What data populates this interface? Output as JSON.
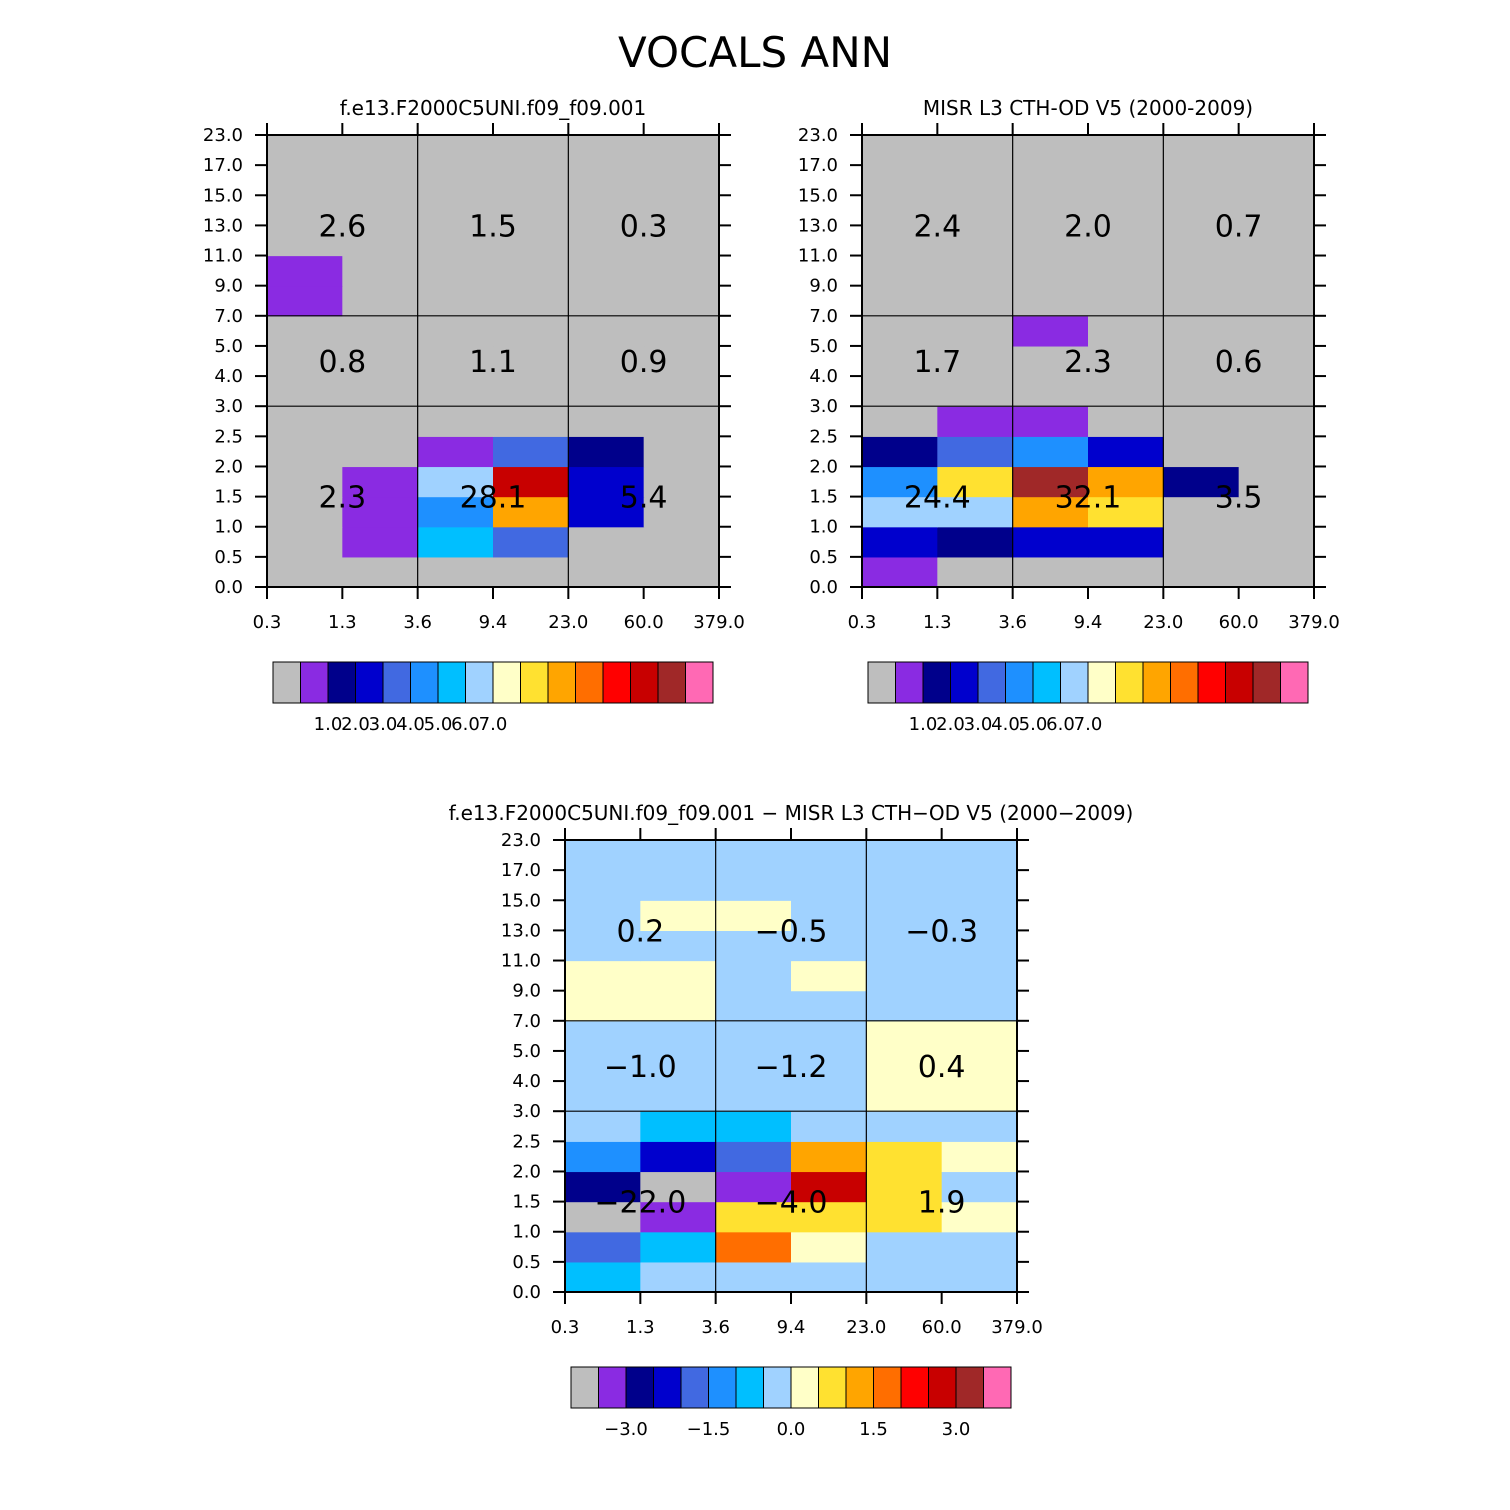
{
  "figure_title": "VOCALS ANN",
  "chart_data": [
    {
      "type": "heatmap",
      "title": "f.e13.F2000C5UNI.f09_f09.001",
      "x_tick_labels": [
        "0.3",
        "1.3",
        "3.6",
        "9.4",
        "23.0",
        "60.0",
        "379.0"
      ],
      "y_tick_labels": [
        "0.0",
        "0.5",
        "1.0",
        "1.5",
        "2.0",
        "2.5",
        "3.0",
        "4.0",
        "5.0",
        "7.0",
        "9.0",
        "11.0",
        "13.0",
        "15.0",
        "17.0",
        "23.0"
      ],
      "grid_rows": [
        [
          0,
          0,
          0,
          0,
          0,
          0
        ],
        [
          0,
          1,
          6,
          4,
          0,
          0
        ],
        [
          0,
          1,
          5,
          10,
          3,
          0
        ],
        [
          0,
          1,
          7,
          13,
          3,
          0
        ],
        [
          0,
          0,
          1,
          4,
          2,
          0
        ],
        [
          0,
          0,
          0,
          0,
          0,
          0
        ],
        [
          0,
          0,
          0,
          0,
          0,
          0
        ],
        [
          0,
          0,
          0,
          0,
          0,
          0
        ],
        [
          0,
          0,
          0,
          0,
          0,
          0
        ],
        [
          1,
          0,
          0,
          0,
          0,
          0
        ],
        [
          1,
          0,
          0,
          0,
          0,
          0
        ],
        [
          0,
          0,
          0,
          0,
          0,
          0
        ],
        [
          0,
          0,
          0,
          0,
          0,
          0
        ],
        [
          0,
          0,
          0,
          0,
          0,
          0
        ],
        [
          0,
          0,
          0,
          0,
          0,
          0
        ]
      ],
      "group_totals": [
        {
          "label": "2.6",
          "col": 0,
          "row": 0
        },
        {
          "label": "1.5",
          "col": 1,
          "row": 0
        },
        {
          "label": "0.3",
          "col": 2,
          "row": 0
        },
        {
          "label": "0.8",
          "col": 0,
          "row": 1
        },
        {
          "label": "1.1",
          "col": 1,
          "row": 1
        },
        {
          "label": "0.9",
          "col": 2,
          "row": 1
        },
        {
          "label": "2.3",
          "col": 0,
          "row": 2
        },
        {
          "label": "28.1",
          "col": 1,
          "row": 2
        },
        {
          "label": "5.4",
          "col": 2,
          "row": 2
        }
      ],
      "colorbar": "abs"
    },
    {
      "type": "heatmap",
      "title": "MISR L3 CTH-OD V5 (2000-2009)",
      "x_tick_labels": [
        "0.3",
        "1.3",
        "3.6",
        "9.4",
        "23.0",
        "60.0",
        "379.0"
      ],
      "y_tick_labels": [
        "0.0",
        "0.5",
        "1.0",
        "1.5",
        "2.0",
        "2.5",
        "3.0",
        "4.0",
        "5.0",
        "7.0",
        "9.0",
        "11.0",
        "13.0",
        "15.0",
        "17.0",
        "23.0"
      ],
      "grid_rows": [
        [
          1,
          0,
          0,
          0,
          0,
          0
        ],
        [
          3,
          2,
          3,
          3,
          0,
          0
        ],
        [
          7,
          7,
          10,
          9,
          0,
          0
        ],
        [
          5,
          9,
          14,
          10,
          2,
          0
        ],
        [
          2,
          4,
          5,
          3,
          0,
          0
        ],
        [
          0,
          1,
          1,
          0,
          0,
          0
        ],
        [
          0,
          0,
          0,
          0,
          0,
          0
        ],
        [
          0,
          0,
          0,
          0,
          0,
          0
        ],
        [
          0,
          0,
          1,
          0,
          0,
          0
        ],
        [
          0,
          0,
          0,
          0,
          0,
          0
        ],
        [
          0,
          0,
          0,
          0,
          0,
          0
        ],
        [
          0,
          0,
          0,
          0,
          0,
          0
        ],
        [
          0,
          0,
          0,
          0,
          0,
          0
        ],
        [
          0,
          0,
          0,
          0,
          0,
          0
        ],
        [
          0,
          0,
          0,
          0,
          0,
          0
        ]
      ],
      "group_totals": [
        {
          "label": "2.4",
          "col": 0,
          "row": 0
        },
        {
          "label": "2.0",
          "col": 1,
          "row": 0
        },
        {
          "label": "0.7",
          "col": 2,
          "row": 0
        },
        {
          "label": "1.7",
          "col": 0,
          "row": 1
        },
        {
          "label": "2.3",
          "col": 1,
          "row": 1
        },
        {
          "label": "0.6",
          "col": 2,
          "row": 1
        },
        {
          "label": "24.4",
          "col": 0,
          "row": 2
        },
        {
          "label": "32.1",
          "col": 1,
          "row": 2
        },
        {
          "label": "3.5",
          "col": 2,
          "row": 2
        }
      ],
      "colorbar": "abs"
    },
    {
      "type": "heatmap",
      "title": "f.e13.F2000C5UNI.f09_f09.001 − MISR L3 CTH−OD V5 (2000−2009)",
      "x_tick_labels": [
        "0.3",
        "1.3",
        "3.6",
        "9.4",
        "23.0",
        "60.0",
        "379.0"
      ],
      "y_tick_labels": [
        "0.0",
        "0.5",
        "1.0",
        "1.5",
        "2.0",
        "2.5",
        "3.0",
        "4.0",
        "5.0",
        "7.0",
        "9.0",
        "11.0",
        "13.0",
        "15.0",
        "17.0",
        "23.0"
      ],
      "grid_rows": [
        [
          6,
          7,
          7,
          7,
          7,
          7
        ],
        [
          4,
          6,
          11,
          8,
          7,
          7
        ],
        [
          0,
          1,
          9,
          9,
          9,
          8
        ],
        [
          2,
          0,
          1,
          13,
          9,
          7
        ],
        [
          5,
          3,
          4,
          10,
          9,
          8
        ],
        [
          7,
          6,
          6,
          7,
          7,
          7
        ],
        [
          7,
          7,
          7,
          7,
          8,
          8
        ],
        [
          7,
          7,
          7,
          7,
          8,
          8
        ],
        [
          7,
          7,
          7,
          7,
          8,
          8
        ],
        [
          8,
          8,
          7,
          7,
          7,
          7
        ],
        [
          8,
          8,
          7,
          8,
          7,
          7
        ],
        [
          7,
          7,
          7,
          7,
          7,
          7
        ],
        [
          7,
          8,
          8,
          7,
          7,
          7
        ],
        [
          7,
          7,
          7,
          7,
          7,
          7
        ],
        [
          7,
          7,
          7,
          7,
          7,
          7
        ]
      ],
      "group_totals": [
        {
          "label": "0.2",
          "col": 0,
          "row": 0
        },
        {
          "label": "−0.5",
          "col": 1,
          "row": 0
        },
        {
          "label": "−0.3",
          "col": 2,
          "row": 0
        },
        {
          "label": "−1.0",
          "col": 0,
          "row": 1
        },
        {
          "label": "−1.2",
          "col": 1,
          "row": 1
        },
        {
          "label": "0.4",
          "col": 2,
          "row": 1
        },
        {
          "label": "−22.0",
          "col": 0,
          "row": 2
        },
        {
          "label": "−4.0",
          "col": 1,
          "row": 2
        },
        {
          "label": "1.9",
          "col": 2,
          "row": 2
        }
      ],
      "colorbar": "diff"
    }
  ],
  "colorbars": {
    "abs": {
      "labels": [
        "1.0",
        "2.0",
        "3.0",
        "4.0",
        "5.0",
        "6.0",
        "7.0"
      ]
    },
    "diff": {
      "labels": [
        "−3.0",
        "−1.5",
        "0.0",
        "1.5",
        "3.0"
      ]
    }
  },
  "palette": [
    "#bebebe",
    "#8a2be2",
    "#00008b",
    "#0000cd",
    "#4169e1",
    "#1e90ff",
    "#00bfff",
    "#a0d2ff",
    "#ffffc8",
    "#ffe130",
    "#ffa500",
    "#ff6e00",
    "#ff0000",
    "#c80000",
    "#a02828",
    "#ff69b4"
  ]
}
